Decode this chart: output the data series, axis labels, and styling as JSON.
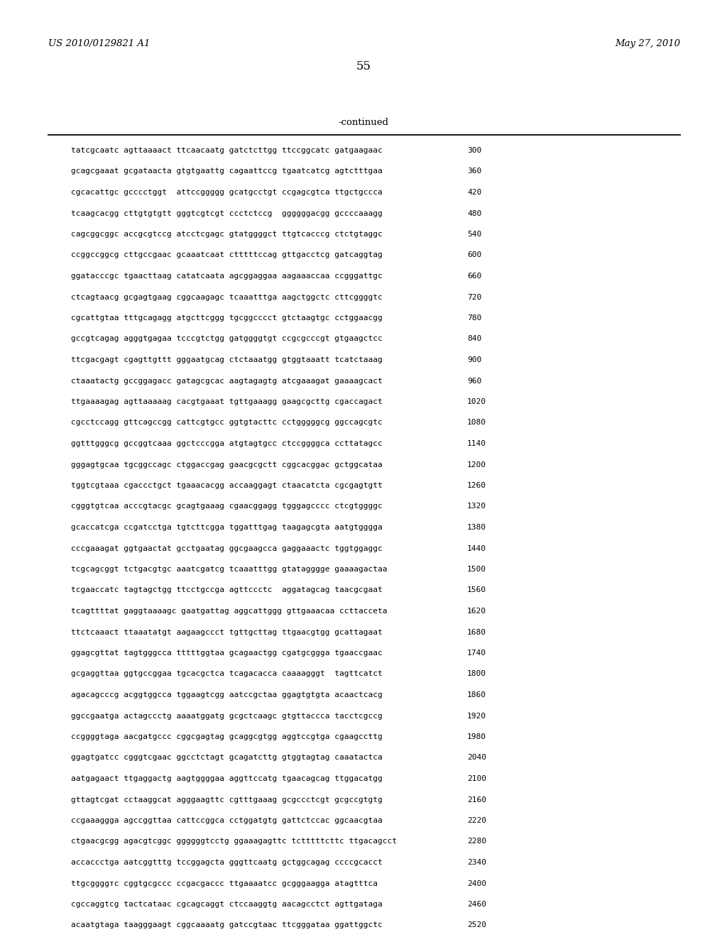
{
  "header_left": "US 2010/0129821 A1",
  "header_right": "May 27, 2010",
  "page_number": "55",
  "continued_label": "-continued",
  "background_color": "#ffffff",
  "text_color": "#000000",
  "sequence_lines": [
    [
      "tatcgcaatc agttaaaact ttcaacaatg gatctcttgg ttccggcatc gatgaagaac",
      "300"
    ],
    [
      "gcagcgaaat gcgataacta gtgtgaattg cagaattccg tgaatcatcg agtctttgaa",
      "360"
    ],
    [
      "cgcacattgc gcccctggt  attccggggg gcatgcctgt ccgagcgtca ttgctgccca",
      "420"
    ],
    [
      "tcaagcacgg cttgtgtgtt gggtcgtcgt ccctctccg  ggggggacgg gccccaaagg",
      "480"
    ],
    [
      "cagcggcggc accgcgtccg atcctcgagc gtatggggct ttgtcacccg ctctgtaggc",
      "540"
    ],
    [
      "ccggccggcg cttgccgaac gcaaatcaat ctttttccag gttgacctcg gatcaggtag",
      "600"
    ],
    [
      "ggatacccgc tgaacttaag catatcaata agcggaggaa aagaaaccaa ccgggattgc",
      "660"
    ],
    [
      "ctcagtaacg gcgagtgaag cggcaagagc tcaaatttga aagctggctc cttcggggtc",
      "720"
    ],
    [
      "cgcattgtaa tttgcagagg atgcttcggg tgcggcccct gtctaagtgc cctggaacgg",
      "780"
    ],
    [
      "gccgtcagag agggtgagaa tcccgtctgg gatggggtgt ccgcgcccgt gtgaagctcc",
      "840"
    ],
    [
      "ttcgacgagt cgagttgttt gggaatgcag ctctaaatgg gtggtaaatt tcatctaaag",
      "900"
    ],
    [
      "ctaaatactg gccggagacc gatagcgcac aagtagagtg atcgaaagat gaaaagcact",
      "960"
    ],
    [
      "ttgaaaagag agttaaaaag cacgtgaaat tgttgaaagg gaagcgcttg cgaccagact",
      "1020"
    ],
    [
      "cgcctccagg gttcagccgg cattcgtgcc ggtgtacttc cctgggggcg ggccagcgtc",
      "1080"
    ],
    [
      "ggtttgggcg gccggtcaaa ggctcccgga atgtagtgcc ctccggggca ccttatagcc",
      "1140"
    ],
    [
      "gggagtgcaa tgcggccagc ctggaccgag gaacgcgctt cggcacggac gctggcataa",
      "1200"
    ],
    [
      "tggtcgtaaa cgaccctgct tgaaacacgg accaaggagt ctaacatcta cgcgagtgtt",
      "1260"
    ],
    [
      "cgggtgtcaa acccgtacgc gcagtgaaag cgaacggagg tgggagcccc ctcgtggggc",
      "1320"
    ],
    [
      "gcaccatcga ccgatcctga tgtcttcgga tggatttgag taagagcgta aatgtgggga",
      "1380"
    ],
    [
      "cccgaaagat ggtgaactat gcctgaatag ggcgaagcca gaggaaactc tggtggaggc",
      "1440"
    ],
    [
      "tcgcagcggt tctgacgtgc aaatcgatcg tcaaatttgg gtatagggge gaaaagactaa",
      "1500"
    ],
    [
      "tcgaaccatc tagtagctgg ttcctgccga agttccctc  aggatagcag taacgcgaat",
      "1560"
    ],
    [
      "tcagttttat gaggtaaaagc gaatgattag aggcattggg gttgaaacaa ccttacceta",
      "1620"
    ],
    [
      "ttctcaaact ttaaatatgt aagaagccct tgttgcttag ttgaacgtgg gcattagaat",
      "1680"
    ],
    [
      "ggagcgttat tagtgggcca tttttggtaa gcagaactgg cgatgcggga tgaaccgaac",
      "1740"
    ],
    [
      "gcgaggttaa ggtgccggaa tgcacgctca tcagacacca caaaagggt  tagttcatct",
      "1800"
    ],
    [
      "agacagcccg acggtggcca tggaagtcgg aatccgctaa ggagtgtgta acaactcacg",
      "1860"
    ],
    [
      "ggccgaatga actagccctg aaaatggatg gcgctcaagc gtgttaccca tacctcgccg",
      "1920"
    ],
    [
      "ccggggtaga aacgatgccc cggcgagtag gcaggcgtgg aggtccgtga cgaagccttg",
      "1980"
    ],
    [
      "ggagtgatcc cgggtcgaac ggcctctagt gcagatcttg gtggtagtag caaatactca",
      "2040"
    ],
    [
      "aatgagaact ttgaggactg aagtggggaa aggttccatg tgaacagcag ttggacatgg",
      "2100"
    ],
    [
      "gttagtcgat cctaaggcat agggaagttc cgtttgaaag gcgccctcgt gcgccgtgtg",
      "2160"
    ],
    [
      "ccgaaaggga agccggttaa cattccggca cctggatgtg gattctccac ggcaacgtaa",
      "2220"
    ],
    [
      "ctgaacgcgg agacgtcggc ggggggtcctg ggaaagagttc tctttttcttc ttgacagcct",
      "2280"
    ],
    [
      "accaccctga aatcggtttg tccggagcta gggttcaatg gctggcagag ccccgcacct",
      "2340"
    ],
    [
      "ttgcggggтc cggtgcgccc ccgacgaccc ttgaaaatcc gcgggaagga atagtttca",
      "2400"
    ],
    [
      "cgccaggtcg tactcataac cgcagcaggt ctccaaggtg aacagcctct agttgataga",
      "2460"
    ],
    [
      "acaatgtaga taagggaagt cggcaaaatg gatccgtaac ttcgggataа ggattggctc",
      "2520"
    ]
  ]
}
